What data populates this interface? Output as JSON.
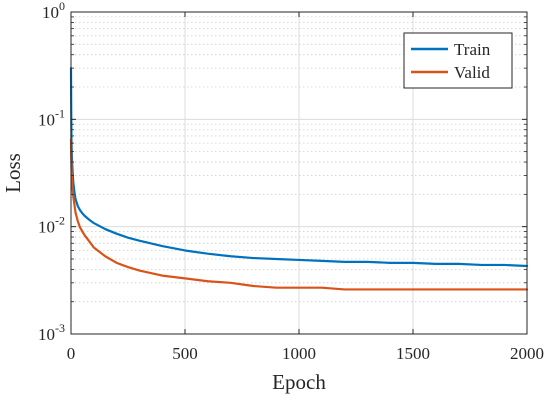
{
  "chart_data": {
    "type": "line",
    "xlabel": "Epoch",
    "ylabel": "Loss",
    "xlim": [
      0,
      2000
    ],
    "ylim": [
      0.001,
      1
    ],
    "yscale": "log",
    "grid": true,
    "legend_position": "top-right",
    "x_ticks": [
      "0",
      "500",
      "1000",
      "1500",
      "2000"
    ],
    "y_ticks": [
      {
        "value": 0.001,
        "base": "10",
        "exp": "-3"
      },
      {
        "value": 0.01,
        "base": "10",
        "exp": "-2"
      },
      {
        "value": 0.1,
        "base": "10",
        "exp": "-1"
      },
      {
        "value": 1,
        "base": "10",
        "exp": "0"
      }
    ],
    "series": [
      {
        "name": "Train",
        "color": "#0072BD",
        "x": [
          0,
          1,
          2,
          4,
          6,
          8,
          10,
          15,
          20,
          30,
          40,
          50,
          60,
          80,
          100,
          150,
          200,
          250,
          300,
          400,
          500,
          600,
          700,
          800,
          900,
          1000,
          1100,
          1200,
          1300,
          1400,
          1500,
          1600,
          1700,
          1800,
          1900,
          2000
        ],
        "y": [
          0.3,
          0.12,
          0.065,
          0.045,
          0.036,
          0.03,
          0.026,
          0.021,
          0.018,
          0.0155,
          0.0142,
          0.0133,
          0.0126,
          0.0116,
          0.0108,
          0.0095,
          0.0086,
          0.0079,
          0.0074,
          0.0066,
          0.006,
          0.0056,
          0.0053,
          0.0051,
          0.005,
          0.0049,
          0.0048,
          0.0047,
          0.0047,
          0.0046,
          0.0046,
          0.0045,
          0.0045,
          0.0044,
          0.0044,
          0.0043
        ]
      },
      {
        "name": "Valid",
        "color": "#D95319",
        "x": [
          0,
          1,
          2,
          4,
          6,
          8,
          10,
          15,
          20,
          30,
          40,
          50,
          60,
          80,
          100,
          150,
          200,
          250,
          300,
          400,
          500,
          600,
          700,
          800,
          900,
          1000,
          1100,
          1200,
          1300,
          1400,
          1500,
          1600,
          1700,
          1800,
          1900,
          2000
        ],
        "y": [
          0.065,
          0.045,
          0.035,
          0.028,
          0.024,
          0.021,
          0.019,
          0.016,
          0.0135,
          0.0112,
          0.0098,
          0.009,
          0.0083,
          0.0073,
          0.0064,
          0.0053,
          0.0046,
          0.0042,
          0.0039,
          0.0035,
          0.0033,
          0.0031,
          0.003,
          0.0028,
          0.0027,
          0.0027,
          0.0027,
          0.0026,
          0.0026,
          0.0026,
          0.0026,
          0.0026,
          0.0026,
          0.0026,
          0.0026,
          0.0026
        ]
      }
    ]
  }
}
